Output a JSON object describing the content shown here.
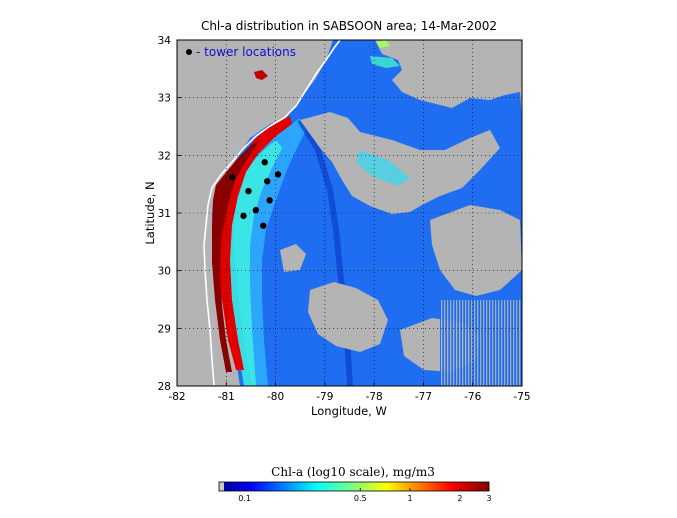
{
  "map": {
    "title": "Chl-a distribution in SABSOON area; 14-Mar-2002",
    "xlabel": "Longitude, W",
    "ylabel": "Latitude, N",
    "x_ticks": [
      "-82",
      "-81",
      "-80",
      "-79",
      "-78",
      "-77",
      "-76",
      "-75"
    ],
    "y_ticks": [
      "28",
      "29",
      "30",
      "31",
      "32",
      "33",
      "34"
    ],
    "xlim": [
      -82,
      -75
    ],
    "ylim": [
      28,
      34
    ],
    "grid": "dotted",
    "land_color": "#b4b4b4",
    "legend": {
      "label": "- tower locations",
      "marker": "black-dot",
      "placement": "top-left"
    },
    "towers": [
      {
        "lon": -80.22,
        "lat": 31.88
      },
      {
        "lon": -80.17,
        "lat": 31.55
      },
      {
        "lon": -79.95,
        "lat": 31.67
      },
      {
        "lon": -80.55,
        "lat": 31.38
      },
      {
        "lon": -80.12,
        "lat": 31.22
      },
      {
        "lon": -80.88,
        "lat": 31.62
      },
      {
        "lon": -80.4,
        "lat": 31.05
      },
      {
        "lon": -80.65,
        "lat": 30.95
      },
      {
        "lon": -80.25,
        "lat": 30.78
      }
    ]
  },
  "colorbar": {
    "label": "Chl-a (log10 scale), mg/m3",
    "ticks": [
      "0.1",
      "0.5",
      "1",
      "2",
      "3"
    ],
    "tick_values": [
      0.1,
      0.5,
      1,
      2,
      3
    ],
    "range": [
      0.07,
      3
    ],
    "colormap": "jet"
  }
}
